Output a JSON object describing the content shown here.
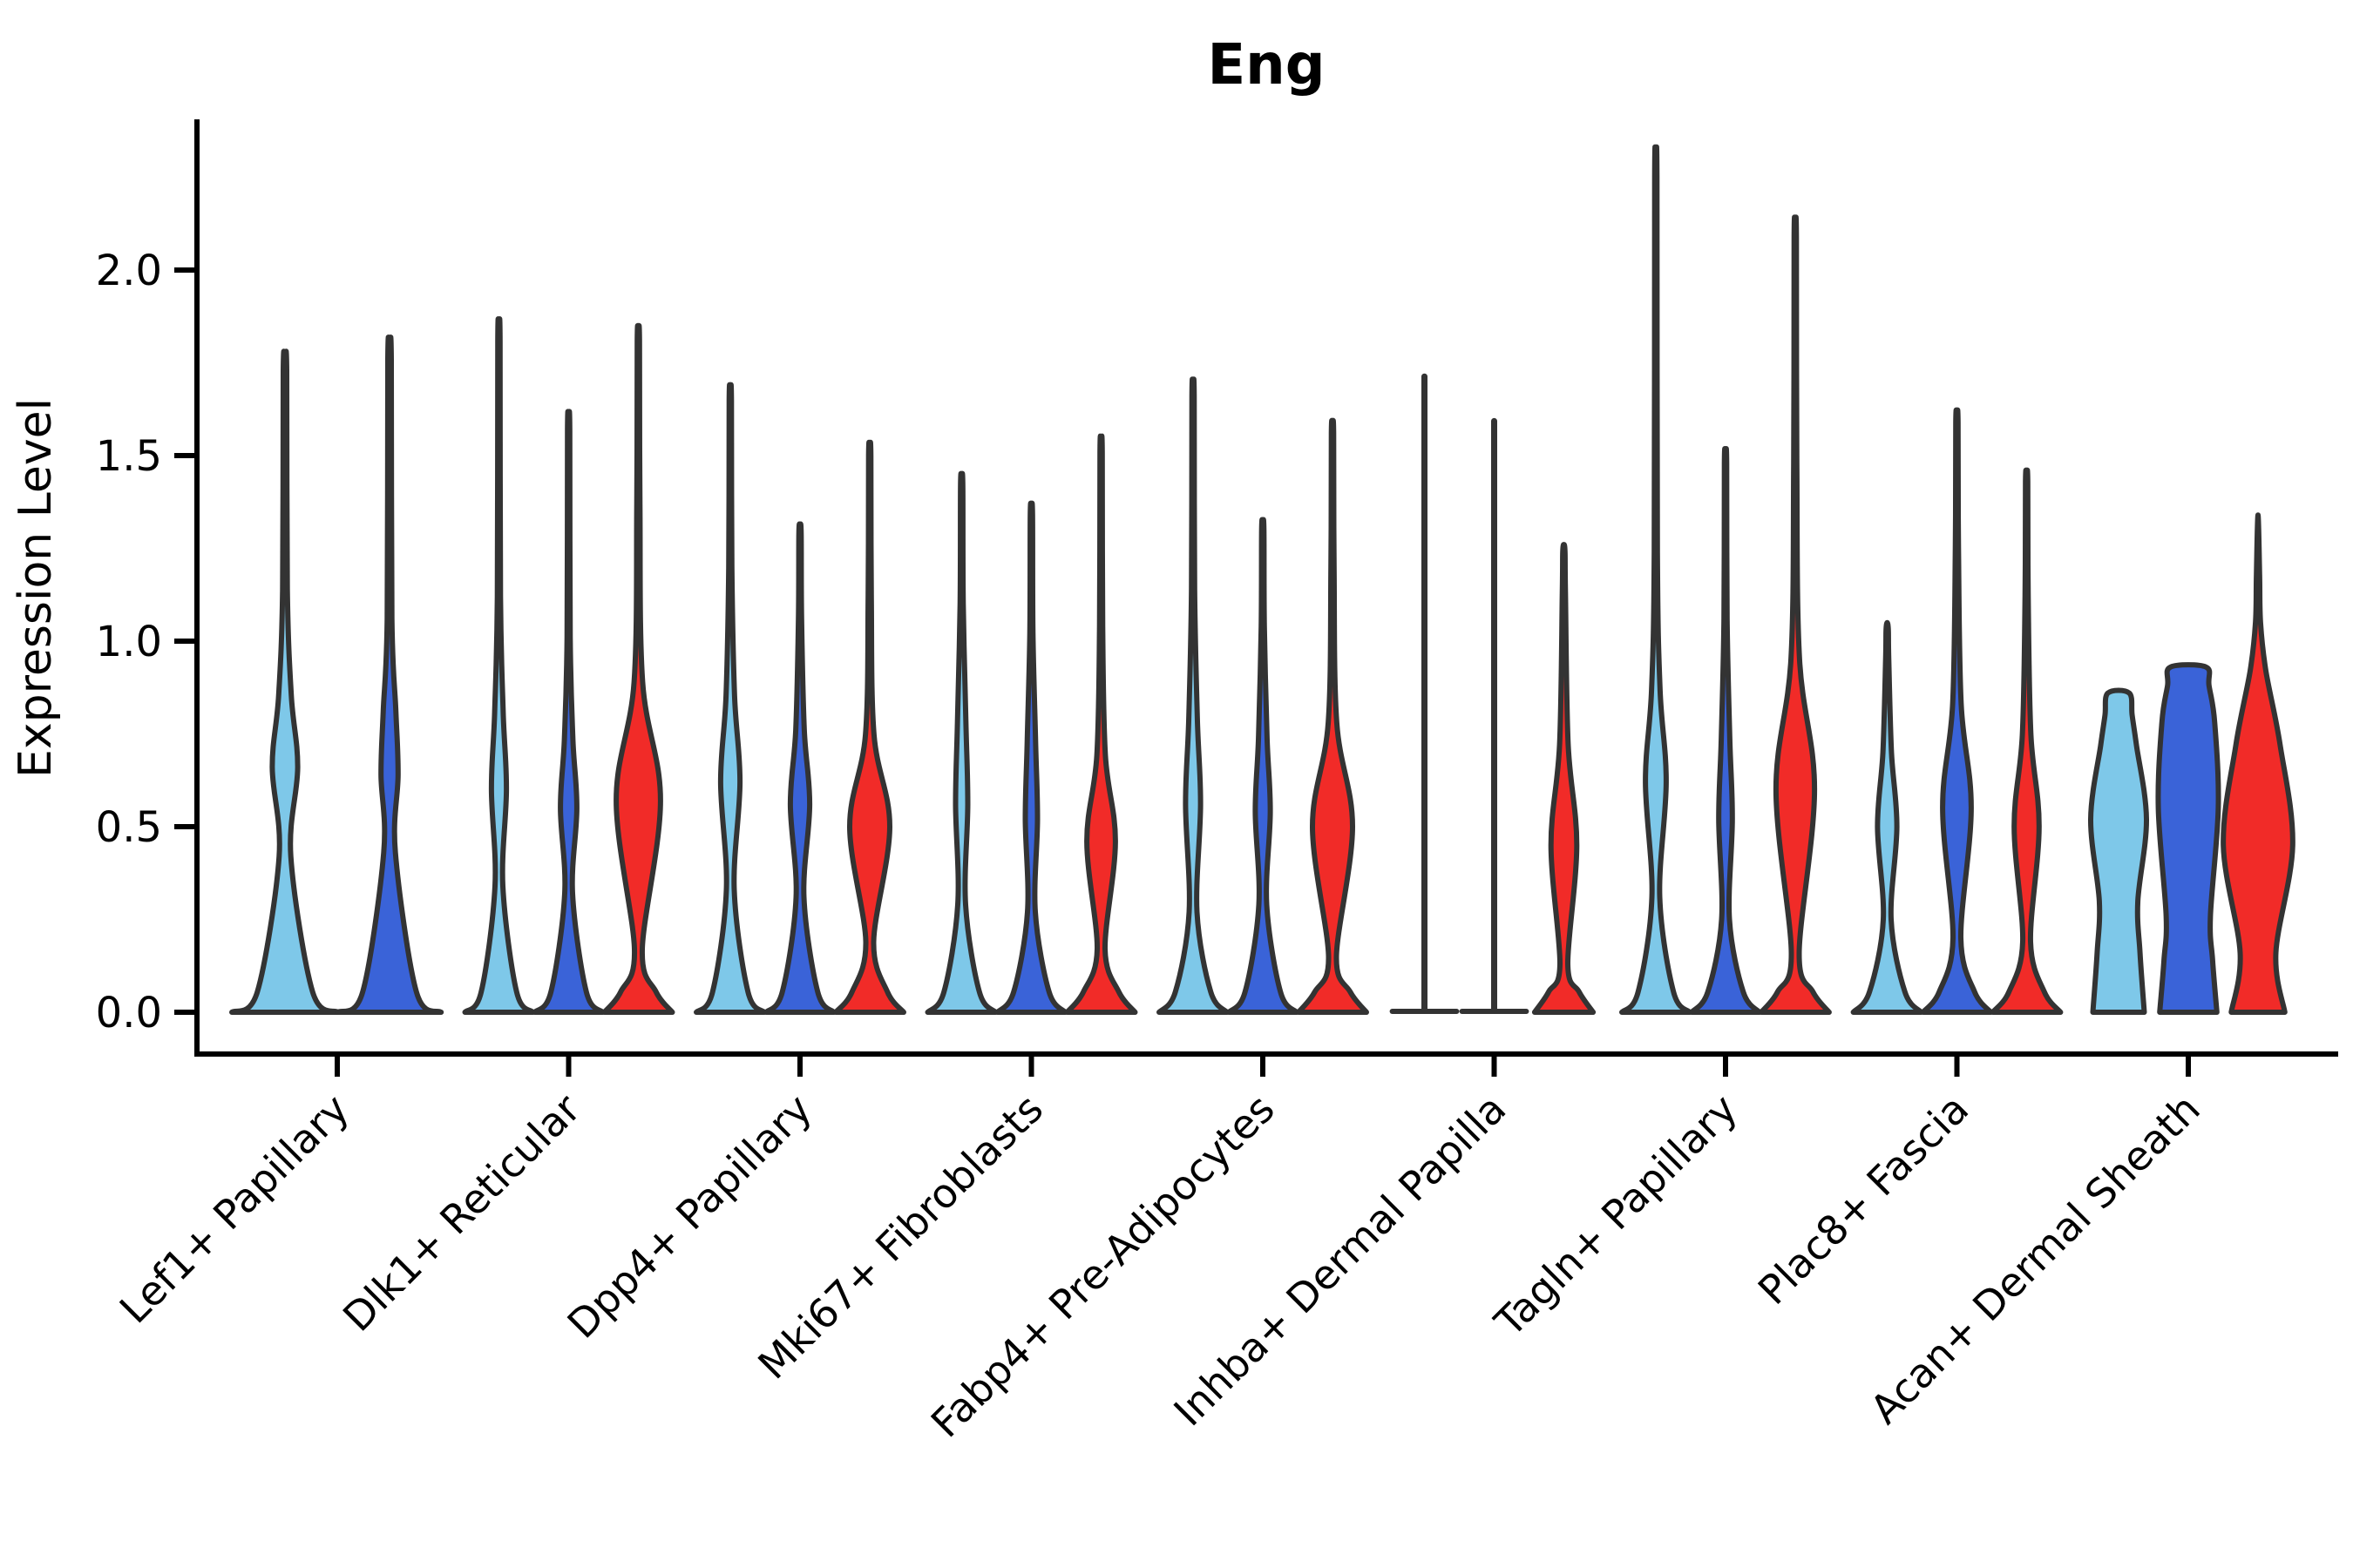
{
  "figure": {
    "title": "Eng",
    "background": "#ffffff"
  },
  "axes": {
    "ylabel": "Expression Level",
    "ytick_labels": [
      "0.0",
      "0.5",
      "1.0",
      "1.5",
      "2.0"
    ],
    "xtick_label_rotation_deg": 45
  },
  "colors": {
    "light_blue": "#7EC8E9",
    "dark_blue": "#3A63D8",
    "red": "#F12B28",
    "outline": "#333333",
    "axis": "#000000",
    "text": "#000000"
  },
  "chart_data": {
    "type": "violin",
    "title": "Eng",
    "ylabel": "Expression Level",
    "ylim": [
      0,
      2.4
    ],
    "yticks": [
      0,
      0.5,
      1.0,
      1.5,
      2.0
    ],
    "grid": false,
    "legend": "none",
    "value_unit": "expression level",
    "categories": [
      {
        "label": "Lef1+ Papillary",
        "violins": [
          {
            "color": "light_blue",
            "shape": "spike",
            "max": 1.75,
            "bulge_center": 0.66,
            "bulge_h": 0.24,
            "bulge_w": 0.24,
            "base": 1.0
          },
          {
            "color": "dark_blue",
            "shape": "spike",
            "max": 1.78,
            "bulge_center": 0.64,
            "bulge_h": 0.21,
            "bulge_w": 0.16,
            "base": 0.97
          }
        ]
      },
      {
        "label": "Dlk1+ Reticular",
        "violins": [
          {
            "color": "light_blue",
            "shape": "spike",
            "max": 1.83,
            "bulge_center": 0.6,
            "bulge_h": 0.26,
            "bulge_w": 0.21
          },
          {
            "color": "dark_blue",
            "shape": "spike",
            "max": 1.59,
            "bulge_center": 0.55,
            "bulge_h": 0.23,
            "bulge_w": 0.23
          },
          {
            "color": "red",
            "shape": "spike",
            "max": 1.83,
            "bulge_center": 0.57,
            "bulge_h": 0.4,
            "bulge_w": 0.62
          }
        ]
      },
      {
        "label": "Dpp4+ Papillary",
        "violins": [
          {
            "color": "light_blue",
            "shape": "spike",
            "max": 1.67,
            "bulge_center": 0.62,
            "bulge_h": 0.29,
            "bulge_w": 0.27
          },
          {
            "color": "dark_blue",
            "shape": "spike",
            "max": 1.31,
            "bulge_center": 0.56,
            "bulge_h": 0.25,
            "bulge_w": 0.27
          },
          {
            "color": "red",
            "shape": "spike",
            "max": 1.52,
            "bulge_center": 0.5,
            "bulge_h": 0.31,
            "bulge_w": 0.56
          }
        ]
      },
      {
        "label": "Mki67+ Fibroblasts",
        "violins": [
          {
            "color": "light_blue",
            "shape": "spike",
            "max": 1.44,
            "bulge_center": 0.56,
            "bulge_h": 0.27,
            "bulge_w": 0.17
          },
          {
            "color": "dark_blue",
            "shape": "spike",
            "max": 1.36,
            "bulge_center": 0.52,
            "bulge_h": 0.25,
            "bulge_w": 0.17
          },
          {
            "color": "red",
            "shape": "spike",
            "max": 1.53,
            "bulge_center": 0.46,
            "bulge_h": 0.29,
            "bulge_w": 0.4
          }
        ]
      },
      {
        "label": "Fabp4+ Pre-Adipocytes",
        "violins": [
          {
            "color": "light_blue",
            "shape": "spike",
            "max": 1.68,
            "bulge_center": 0.56,
            "bulge_h": 0.29,
            "bulge_w": 0.21
          },
          {
            "color": "dark_blue",
            "shape": "spike",
            "max": 1.32,
            "bulge_center": 0.54,
            "bulge_h": 0.25,
            "bulge_w": 0.21
          },
          {
            "color": "red",
            "shape": "spike",
            "max": 1.58,
            "bulge_center": 0.5,
            "bulge_h": 0.35,
            "bulge_w": 0.56
          }
        ]
      },
      {
        "label": "Inhba+ Dermal Papilla",
        "violins": [
          {
            "color": "light_blue",
            "shape": "line",
            "max": 1.72
          },
          {
            "color": "dark_blue",
            "shape": "line",
            "max": 1.6
          },
          {
            "color": "red",
            "shape": "spike",
            "max": 1.26,
            "bulge_center": 0.45,
            "bulge_h": 0.34,
            "bulge_w": 0.36,
            "base": 0.82
          }
        ]
      },
      {
        "label": "Tagln+ Papillary",
        "violins": [
          {
            "color": "light_blue",
            "shape": "spike",
            "max": 2.27,
            "bulge_center": 0.62,
            "bulge_h": 0.31,
            "bulge_w": 0.29
          },
          {
            "color": "dark_blue",
            "shape": "spike",
            "max": 1.5,
            "bulge_center": 0.52,
            "bulge_h": 0.27,
            "bulge_w": 0.19
          },
          {
            "color": "red",
            "shape": "spike",
            "max": 2.11,
            "bulge_center": 0.6,
            "bulge_h": 0.44,
            "bulge_w": 0.54
          }
        ]
      },
      {
        "label": "Plac8+ Fascia",
        "violins": [
          {
            "color": "light_blue",
            "shape": "spike",
            "max": 1.05,
            "bulge_center": 0.5,
            "bulge_h": 0.25,
            "bulge_w": 0.27
          },
          {
            "color": "dark_blue",
            "shape": "spike",
            "max": 1.61,
            "bulge_center": 0.55,
            "bulge_h": 0.35,
            "bulge_w": 0.4
          },
          {
            "color": "red",
            "shape": "spike",
            "max": 1.45,
            "bulge_center": 0.5,
            "bulge_h": 0.31,
            "bulge_w": 0.35
          }
        ]
      },
      {
        "label": "Acan+ Dermal Sheath",
        "violins": [
          {
            "color": "light_blue",
            "shape": "column",
            "tip": "flat",
            "max": 0.86,
            "cap": 0.3,
            "profile": [
              [
                0,
                0.72
              ],
              [
                0.16,
                0.6
              ],
              [
                0.3,
                0.54
              ],
              [
                0.52,
                0.78
              ],
              [
                0.72,
                0.5
              ],
              [
                0.8,
                0.38
              ]
            ]
          },
          {
            "color": "dark_blue",
            "shape": "column",
            "tip": "flat",
            "max": 0.93,
            "cap": 0.5,
            "profile": [
              [
                0,
                0.8
              ],
              [
                0.14,
                0.68
              ],
              [
                0.26,
                0.62
              ],
              [
                0.55,
                0.84
              ],
              [
                0.78,
                0.74
              ],
              [
                0.88,
                0.58
              ]
            ]
          },
          {
            "color": "red",
            "shape": "column",
            "tip": "point",
            "max": 1.34,
            "profile": [
              [
                0,
                0.75
              ],
              [
                0.16,
                0.5
              ],
              [
                0.45,
                0.97
              ],
              [
                0.72,
                0.62
              ],
              [
                0.92,
                0.22
              ],
              [
                1.05,
                0.07
              ],
              [
                1.18,
                0.045
              ]
            ]
          }
        ]
      }
    ]
  }
}
